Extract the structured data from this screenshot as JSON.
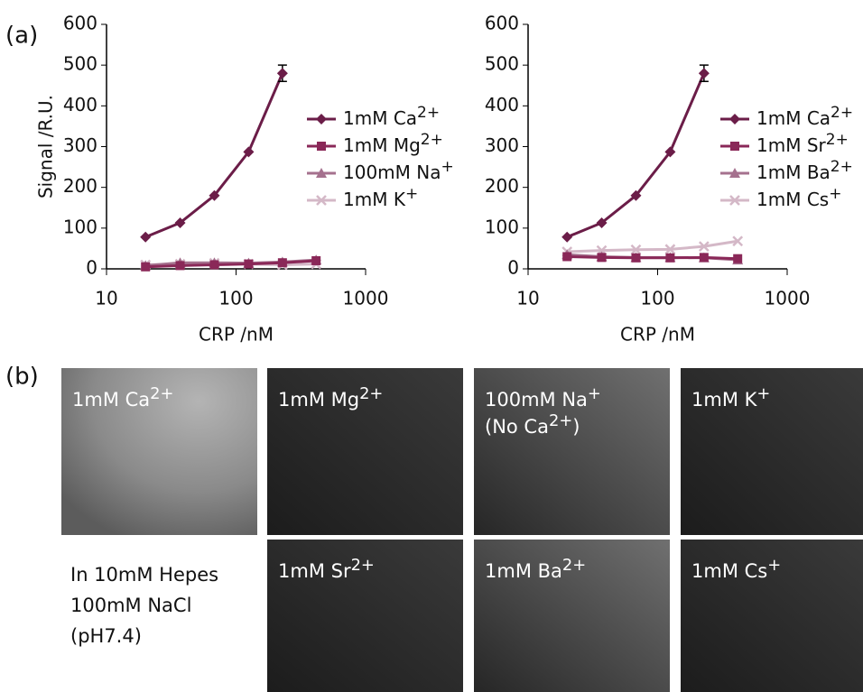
{
  "panel_labels": [
    "(a)",
    "(b)"
  ],
  "chart_data": [
    {
      "type": "line",
      "log_x": true,
      "ylabel": "Signal /R.U.",
      "xlabel": "CRP /nM",
      "x": [
        20,
        37,
        68,
        125,
        228,
        415
      ],
      "xlim": [
        10,
        1000
      ],
      "xticks": [
        10,
        100,
        1000
      ],
      "ylim": [
        0,
        600
      ],
      "yticks": [
        0,
        100,
        200,
        300,
        400,
        500,
        600
      ],
      "series": [
        {
          "name": "1mM Ca2+",
          "color": "#6b1d48",
          "marker": "diamond",
          "values": [
            78,
            113,
            180,
            287,
            480,
            null
          ],
          "errors": [
            null,
            null,
            null,
            null,
            20
          ]
        },
        {
          "name": "1mM Mg2+",
          "color": "#8a2858",
          "marker": "square",
          "values": [
            5,
            8,
            10,
            12,
            15,
            20
          ]
        },
        {
          "name": "100mM Na+",
          "color": "#a5718e",
          "marker": "triangle",
          "values": [
            8,
            15,
            15,
            14,
            17,
            22
          ]
        },
        {
          "name": "1mM K+",
          "color": "#d4b8c7",
          "marker": "x",
          "values": [
            10,
            12,
            14,
            12,
            10,
            12
          ]
        }
      ]
    },
    {
      "type": "line",
      "log_x": true,
      "xlabel": "CRP /nM",
      "x": [
        20,
        37,
        68,
        125,
        228,
        415
      ],
      "xlim": [
        10,
        1000
      ],
      "xticks": [
        10,
        100,
        1000
      ],
      "ylim": [
        0,
        600
      ],
      "yticks": [
        0,
        100,
        200,
        300,
        400,
        500,
        600
      ],
      "series": [
        {
          "name": "1mM Ca2+",
          "color": "#6b1d48",
          "marker": "diamond",
          "values": [
            78,
            113,
            180,
            287,
            480,
            null
          ],
          "errors": [
            null,
            null,
            null,
            null,
            20
          ]
        },
        {
          "name": "1mM Sr2+",
          "color": "#8a2858",
          "marker": "square",
          "values": [
            30,
            28,
            27,
            27,
            28,
            25
          ]
        },
        {
          "name": "1mM Ba2+",
          "color": "#a5718e",
          "marker": "triangle",
          "values": [
            35,
            30,
            28,
            28,
            27,
            22
          ]
        },
        {
          "name": "1mM Cs+",
          "color": "#d4b8c7",
          "marker": "x",
          "values": [
            42,
            45,
            47,
            48,
            55,
            68
          ]
        }
      ]
    }
  ],
  "images": [
    {
      "lines": [
        "1mM Ca2+"
      ]
    },
    {
      "lines": [
        "1mM Mg2+"
      ]
    },
    {
      "lines": [
        "100mM Na+",
        "(No Ca2+)"
      ]
    },
    {
      "lines": [
        "1mM K+"
      ]
    },
    {
      "lines": [
        "1mM Sr2+"
      ]
    },
    {
      "lines": [
        "1mM Ba2+"
      ]
    },
    {
      "lines": [
        "1mM Cs+"
      ]
    }
  ],
  "buffer_note": [
    "In 10mM Hepes",
    "100mM NaCl",
    "(pH7.4)"
  ]
}
